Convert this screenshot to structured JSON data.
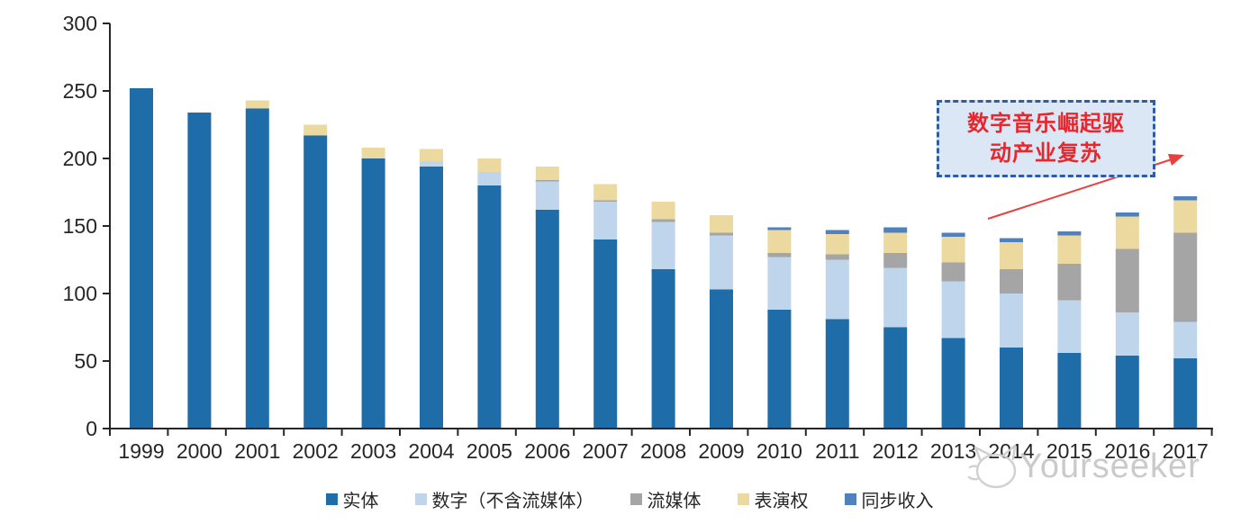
{
  "chart_data": {
    "type": "bar",
    "stacked": true,
    "title": "",
    "xlabel": "",
    "ylabel": "",
    "categories": [
      "1999",
      "2000",
      "2001",
      "2002",
      "2003",
      "2004",
      "2005",
      "2006",
      "2007",
      "2008",
      "2009",
      "2010",
      "2011",
      "2012",
      "2013",
      "2014",
      "2015",
      "2016",
      "2017"
    ],
    "series": [
      {
        "name": "实体",
        "color": "#1E6CA8",
        "values": [
          252,
          234,
          237,
          217,
          200,
          194,
          180,
          162,
          140,
          118,
          103,
          88,
          81,
          75,
          67,
          60,
          56,
          54,
          52
        ]
      },
      {
        "name": "数字（不含流媒体）",
        "color": "#BFD5EC",
        "values": [
          0,
          0,
          0,
          0,
          0,
          4,
          10,
          21,
          28,
          35,
          40,
          39,
          44,
          44,
          42,
          40,
          39,
          32,
          27
        ]
      },
      {
        "name": "流媒体",
        "color": "#A5A5A5",
        "values": [
          0,
          0,
          0,
          0,
          0,
          0,
          0,
          1,
          1,
          2,
          2,
          3,
          4,
          11,
          14,
          18,
          27,
          47,
          66
        ]
      },
      {
        "name": "表演权",
        "color": "#EBD99F",
        "values": [
          0,
          0,
          6,
          8,
          8,
          9,
          10,
          10,
          12,
          13,
          13,
          17,
          15,
          15,
          19,
          20,
          21,
          24,
          24
        ]
      },
      {
        "name": "同步收入",
        "color": "#4E81BE",
        "values": [
          0,
          0,
          0,
          0,
          0,
          0,
          0,
          0,
          0,
          0,
          0,
          2,
          3,
          4,
          3,
          3,
          3,
          3,
          3
        ]
      }
    ],
    "totals": [
      252,
      234,
      243,
      225,
      208,
      207,
      200,
      194,
      181,
      168,
      158,
      149,
      147,
      149,
      145,
      141,
      146,
      160,
      172
    ],
    "ylim": [
      0,
      300
    ],
    "yticks": [
      0,
      50,
      100,
      150,
      200,
      250,
      300
    ],
    "grid": false,
    "legend_position": "bottom",
    "axis_color": "#262626",
    "label_color": "#262626"
  },
  "annotation": {
    "line1": "数字音乐崛起驱",
    "line2": "动产业复苏",
    "text_color": "#E8262B",
    "border_color": "#2E5DA6",
    "fill_color": "#DBE7F5",
    "arrow_color": "#E8403C"
  },
  "watermark": {
    "text": "Yourseeker",
    "color": "#C8C8C8"
  }
}
